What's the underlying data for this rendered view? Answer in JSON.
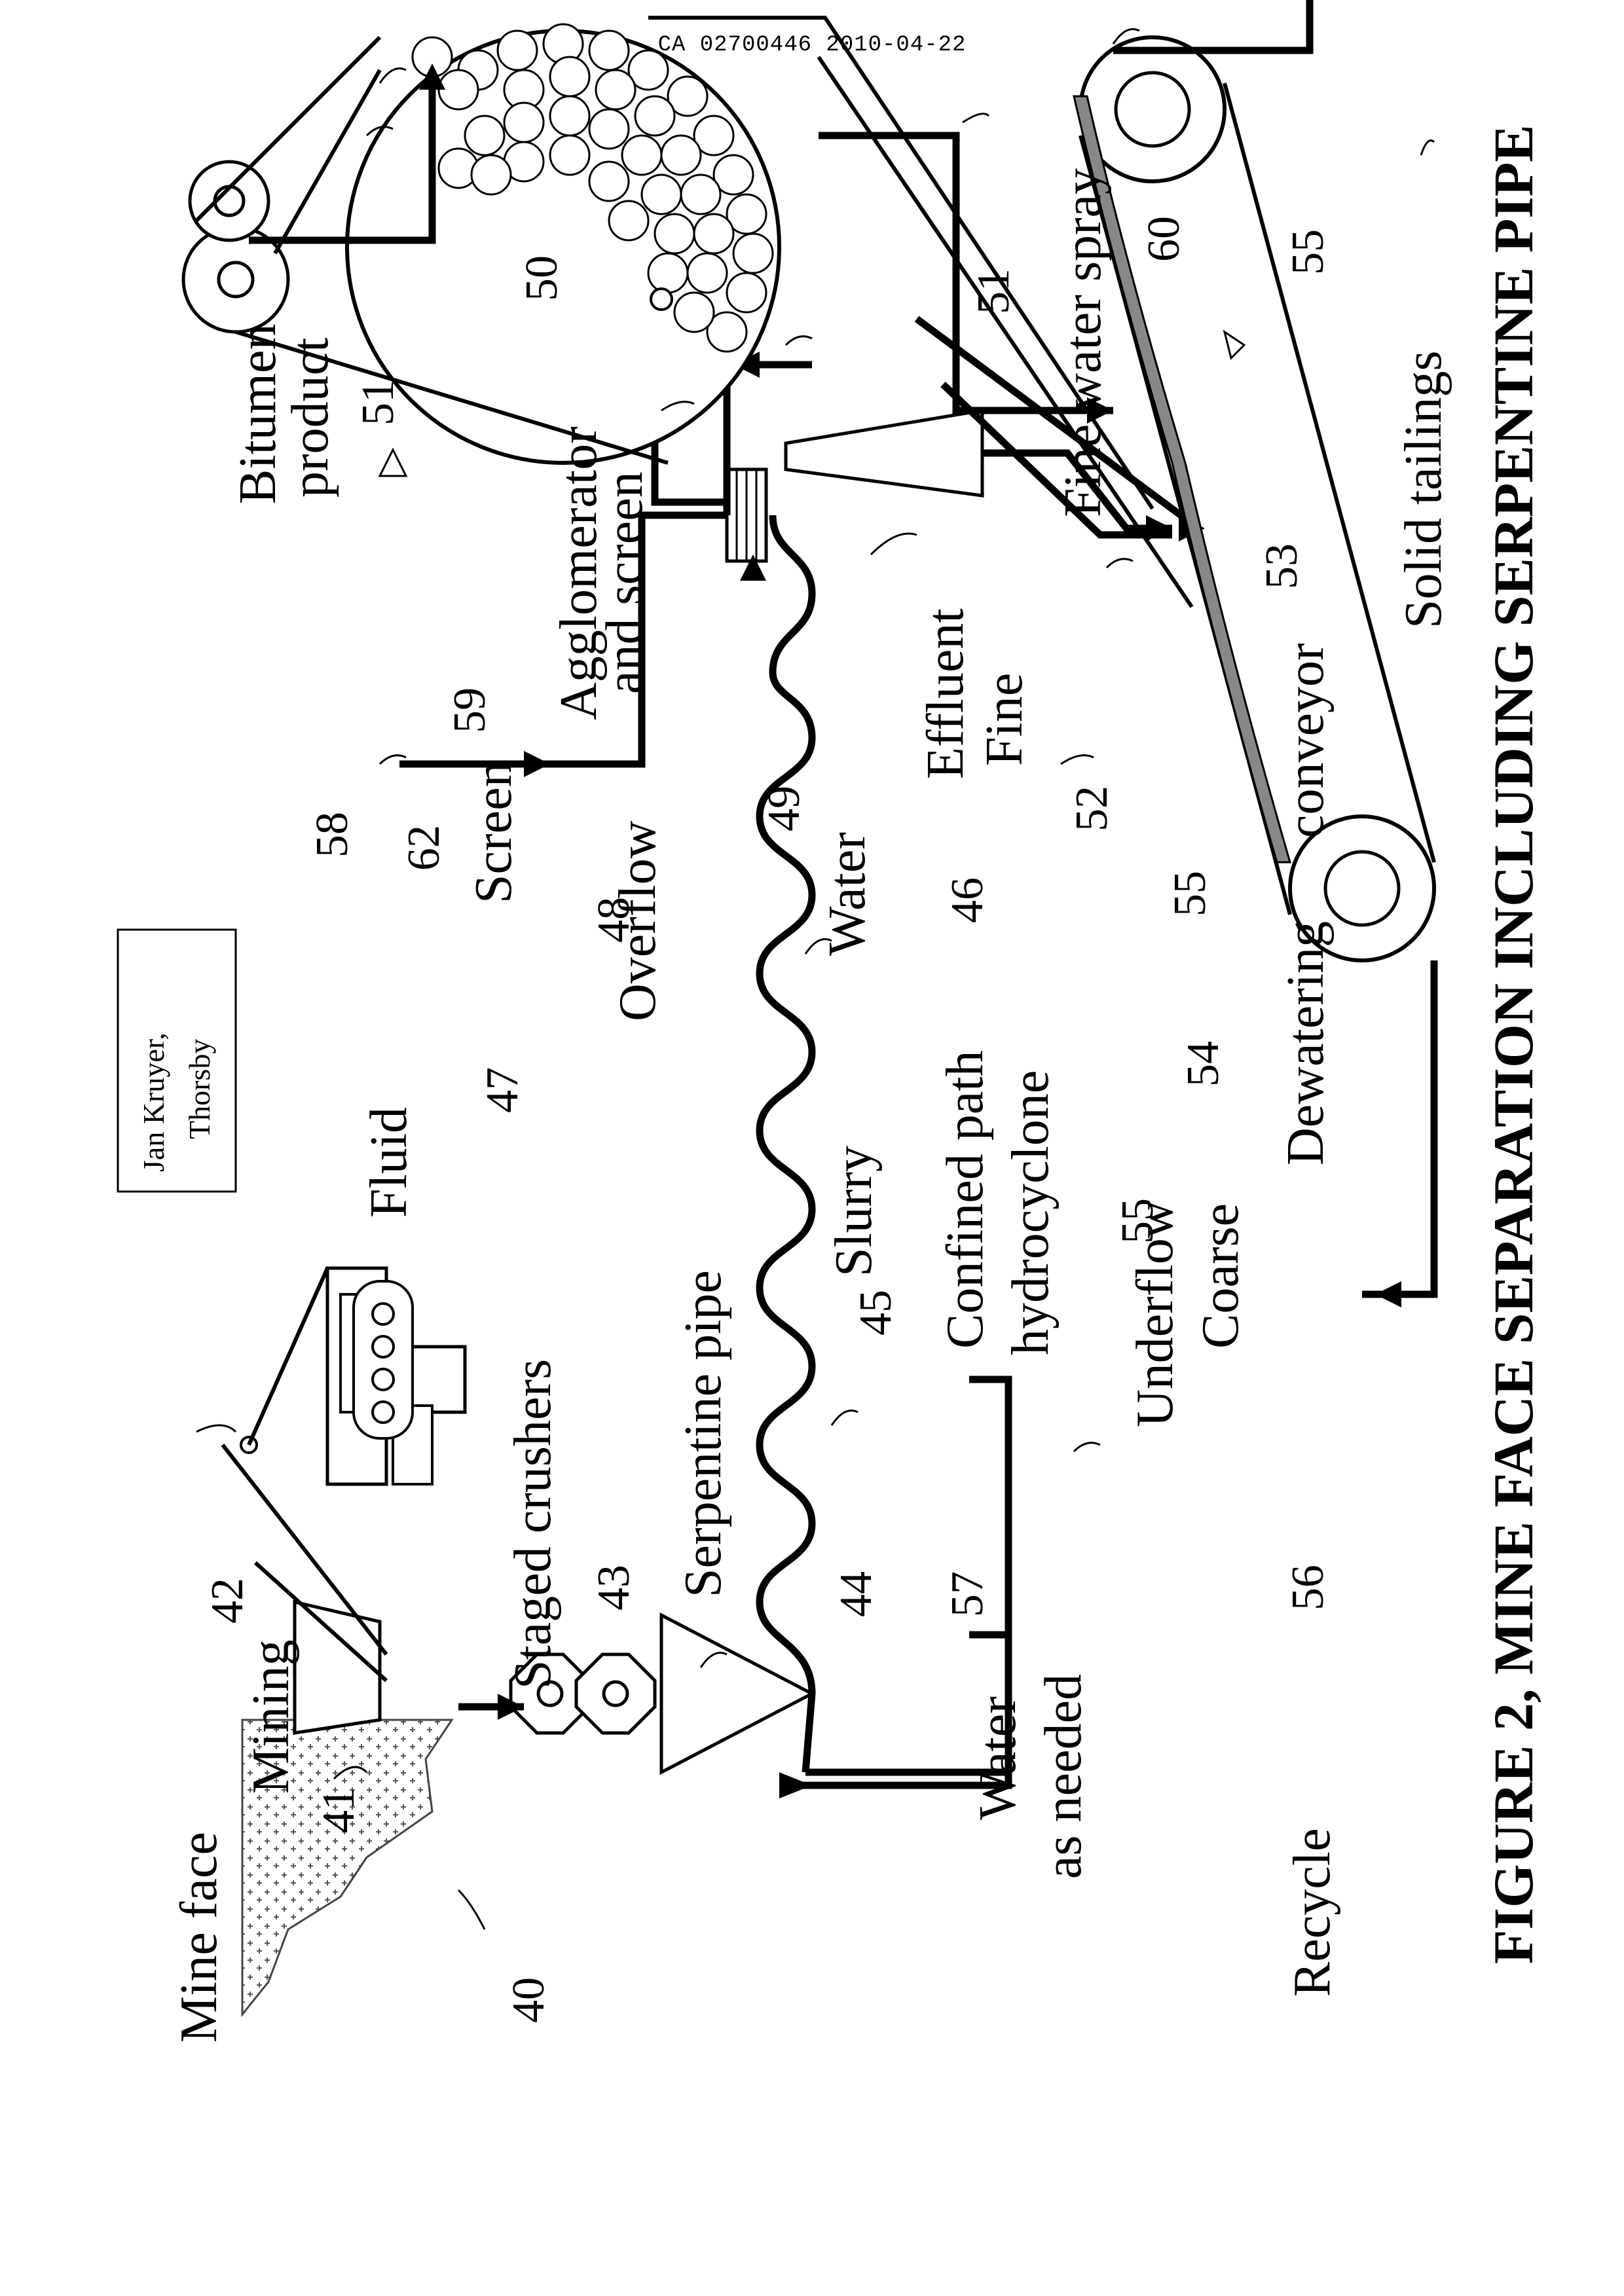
{
  "header": {
    "doc_id": "CA 02700446 2010-04-22"
  },
  "author": {
    "line1": "Jan Kruyer,",
    "line2": "Thorsby"
  },
  "caption": "FIGURE 2, MINE FACE SEPARATION INCLUDING SERPENTINE PIPE",
  "labels": {
    "mine_face": "Mine face",
    "mining": "Mining",
    "staged_crushers": "Staged crushers",
    "serpentine_pipe": "Serpentine pipe",
    "slurry": "Slurry",
    "fluid": "Fluid",
    "confined_path": "Confined path",
    "hydrocyclone": "hydrocyclone",
    "underflow": "Underflow",
    "coarse": "Coarse",
    "water": "Water",
    "water_as": "Water",
    "as_needed": "as needed",
    "recycle": "Recycle",
    "overflow": "Overflow",
    "screen": "Screen",
    "agglomerator": "Agglomerator",
    "and_screen": "and screen",
    "bitumen": "Bitumen",
    "product": "product",
    "effluent": "Effluent",
    "fine": "Fine",
    "dewatering": "Dewatering",
    "conveyor": "conveyor",
    "fine_water_spray": "Fine water spray",
    "solid_tailings": "Solid tailings"
  },
  "refs": {
    "r40": "40",
    "r41": "41",
    "r42": "42",
    "r43": "43",
    "r44": "44",
    "r45": "45",
    "r46": "46",
    "r47": "47",
    "r48": "48",
    "r49": "49",
    "r50": "50",
    "r51a": "51",
    "r51b": "51",
    "r52": "52",
    "r53": "53",
    "r54": "54",
    "r55a": "55",
    "r55b": "55",
    "r55c": "55",
    "r56": "56",
    "r57": "57",
    "r58": "58",
    "r59": "59",
    "r60": "60",
    "r62": "62"
  }
}
